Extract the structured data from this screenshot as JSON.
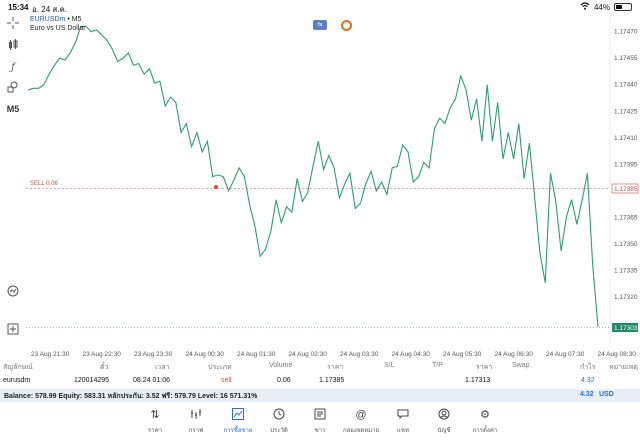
{
  "status_bar": {
    "time": "15:34",
    "date": "อ. 24 ส.ค.",
    "battery": "44%"
  },
  "chart": {
    "symbol": "EURUSDm",
    "timeframe_suffix": " • M5",
    "description": "Euro vs US Dollar",
    "timeframe": "M5",
    "sell_label": "SELL 0.06",
    "current_price_tag": "1.17303",
    "sell_price_tag": "1.17385",
    "y_axis_labels": [
      "1.17470",
      "1.17455",
      "1.17440",
      "1.17425",
      "1.17410",
      "1.17395",
      "1.17380",
      "1.17365",
      "1.17350",
      "1.17335",
      "1.17320"
    ],
    "x_axis_labels": [
      "23 Aug 21:30",
      "23 Aug 22:30",
      "23 Aug 23:30",
      "24 Aug 00:30",
      "24 Aug 01:30",
      "24 Aug 02:30",
      "24 Aug 03:30",
      "24 Aug 04:30",
      "24 Aug 05:30",
      "24 Aug 06:30",
      "24 Aug 07:30",
      "24 Aug 08:30"
    ],
    "colors": {
      "line": "#2e9e6e",
      "sell": "#d84b3e",
      "current": "#1f8a63"
    }
  },
  "chart_data": {
    "type": "line",
    "series": [
      {
        "values": [
          1.17437,
          1.17438,
          1.17438,
          1.1744,
          1.17446,
          1.17451,
          1.17455,
          1.17454,
          1.17458,
          1.17464,
          1.17473,
          1.17473,
          1.1747,
          1.17471,
          1.17468,
          1.17465,
          1.1746,
          1.17453,
          1.17455,
          1.17458,
          1.17451,
          1.17452,
          1.17446,
          1.17449,
          1.17441,
          1.17442,
          1.17428,
          1.17433,
          1.1743,
          1.17413,
          1.17418,
          1.17405,
          1.17413,
          1.17402,
          1.17408,
          1.17388,
          1.17389,
          1.17388,
          1.1738,
          1.17386,
          1.17393,
          1.17388,
          1.17372,
          1.1736,
          1.17343,
          1.17347,
          1.17357,
          1.17375,
          1.17362,
          1.17371,
          1.17368,
          1.17387,
          1.17374,
          1.17379,
          1.17394,
          1.17408,
          1.17392,
          1.174,
          1.17393,
          1.17376,
          1.17384,
          1.1739,
          1.1737,
          1.17373,
          1.17384,
          1.17391,
          1.1738,
          1.17385,
          1.17378,
          1.17393,
          1.17394,
          1.17406,
          1.17402,
          1.17385,
          1.17388,
          1.17396,
          1.17393,
          1.17415,
          1.17421,
          1.17418,
          1.17427,
          1.17432,
          1.17445,
          1.17437,
          1.1742,
          1.17432,
          1.17408,
          1.1744,
          1.17408,
          1.1743,
          1.17398,
          1.17413,
          1.17398,
          1.17418,
          1.17387,
          1.17407,
          1.17376,
          1.17345,
          1.17328,
          1.1739,
          1.17374,
          1.17346,
          1.17365,
          1.17375,
          1.17361,
          1.17375,
          1.1739,
          1.17338,
          1.17303
        ]
      }
    ],
    "markers": [
      {
        "label": "SELL 0.06",
        "price": 1.17385
      }
    ],
    "ylim": [
      1.17303,
      1.1748
    ]
  },
  "table": {
    "headers": [
      "สัญลักษณ์",
      "ตั๋ว",
      "เวลา",
      "ประเภท",
      "Volume",
      "ราคา",
      "S/L",
      "T/P",
      "ราคา",
      "Swap",
      "กำไร",
      "หมายเหตุ"
    ],
    "row": {
      "symbol": "eurusdm",
      "ticket": "120014295",
      "time": "08.24 01:06",
      "type": "sell",
      "volume": "0.06",
      "open_price": "1.17385",
      "current_price": "1.17313",
      "profit": "4.32"
    }
  },
  "balance": {
    "text": "Balance: 578.99 Equity: 583.31 หลักประกัน: 3.52 ฟรี: 579.79 Level: 16 571.31%",
    "total": "4.32",
    "currency": "USD"
  },
  "nav": [
    {
      "label": "ราคา",
      "icon": "arrows-updown-icon"
    },
    {
      "label": "กราฟ",
      "icon": "chart-bars-icon"
    },
    {
      "label": "การซื้อขาย",
      "icon": "trade-chart-icon"
    },
    {
      "label": "ประวัติ",
      "icon": "history-icon"
    },
    {
      "label": "ข่าว",
      "icon": "news-icon"
    },
    {
      "label": "กล่องจดหมาย",
      "icon": "at-icon"
    },
    {
      "label": "แชท",
      "icon": "chat-icon"
    },
    {
      "label": "บัญชี",
      "icon": "account-icon"
    },
    {
      "label": "การตั้งค่า",
      "icon": "settings-icon"
    }
  ]
}
